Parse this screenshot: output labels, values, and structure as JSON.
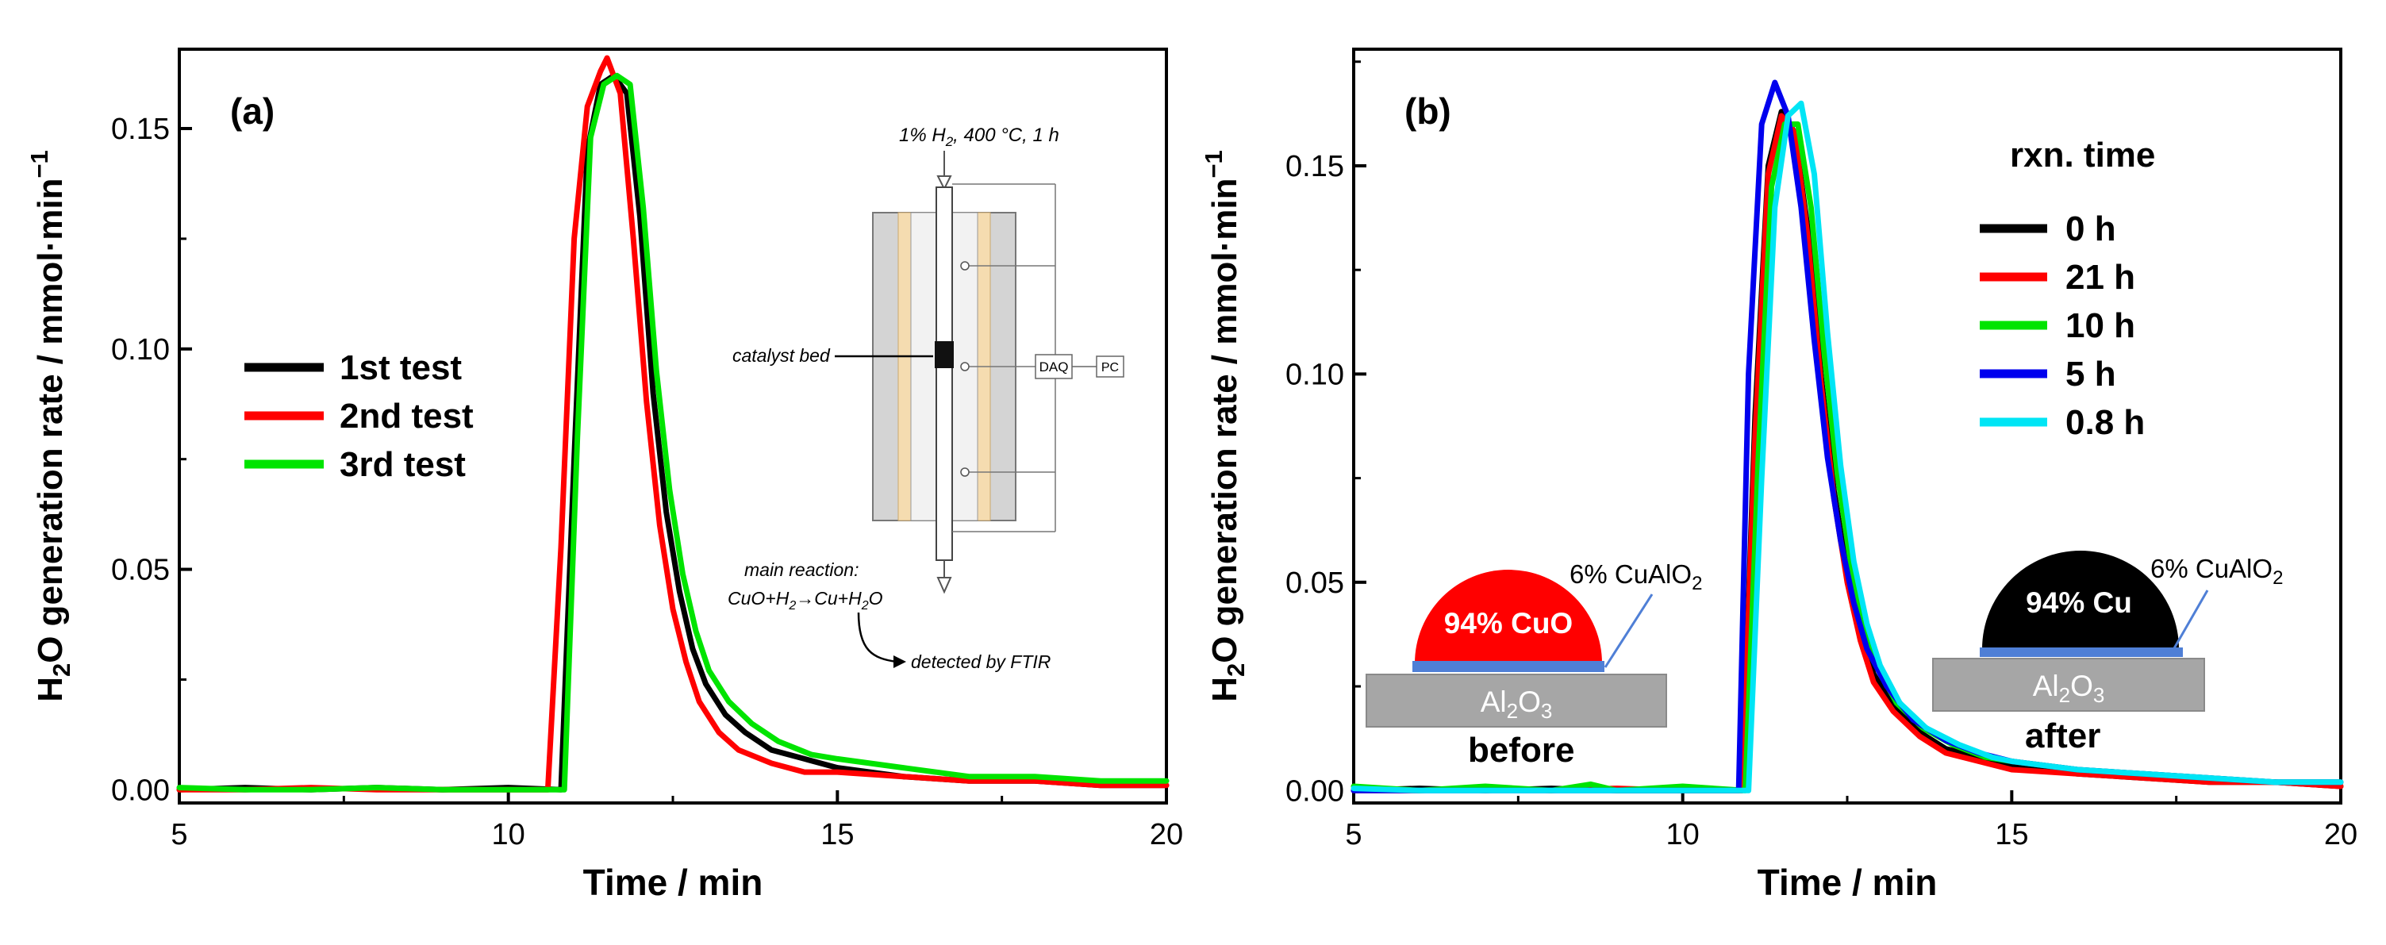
{
  "chart_data": [
    {
      "type": "line",
      "panel_label": "(a)",
      "xlabel": "Time / min",
      "ylabel": "H2O generation rate / mmol·min−1",
      "xlim": [
        5,
        20
      ],
      "ylim": [
        -0.003,
        0.168
      ],
      "xticks": [
        5,
        10,
        15,
        20
      ],
      "xtick_labels": [
        "5",
        "10",
        "15",
        "20"
      ],
      "yticks": [
        0.0,
        0.05,
        0.1,
        0.15
      ],
      "ytick_labels": [
        "0.00",
        "0.05",
        "0.10",
        "0.15"
      ],
      "legend": {
        "placement": "middle-left",
        "entries": [
          "1st test",
          "2nd test",
          "3rd test"
        ]
      },
      "series": [
        {
          "name": "1st test",
          "color": "#000000",
          "points": [
            [
              5,
              0
            ],
            [
              6,
              0.0005
            ],
            [
              7,
              0
            ],
            [
              8,
              0.0005
            ],
            [
              9,
              0
            ],
            [
              10,
              0.0005
            ],
            [
              10.8,
              0
            ],
            [
              11.0,
              0.075
            ],
            [
              11.2,
              0.145
            ],
            [
              11.4,
              0.16
            ],
            [
              11.6,
              0.162
            ],
            [
              11.8,
              0.158
            ],
            [
              12.0,
              0.13
            ],
            [
              12.2,
              0.09
            ],
            [
              12.4,
              0.063
            ],
            [
              12.6,
              0.045
            ],
            [
              12.8,
              0.032
            ],
            [
              13.0,
              0.024
            ],
            [
              13.3,
              0.017
            ],
            [
              13.6,
              0.013
            ],
            [
              14.0,
              0.009
            ],
            [
              14.5,
              0.007
            ],
            [
              15,
              0.005
            ],
            [
              16,
              0.003
            ],
            [
              17,
              0.002
            ],
            [
              18,
              0.002
            ],
            [
              19,
              0.001
            ],
            [
              20,
              0.001
            ]
          ]
        },
        {
          "name": "2nd test",
          "color": "#ff0000",
          "points": [
            [
              5,
              0
            ],
            [
              6,
              0
            ],
            [
              7,
              0.0005
            ],
            [
              8,
              0
            ],
            [
              9,
              0
            ],
            [
              10,
              0
            ],
            [
              10.6,
              0
            ],
            [
              10.8,
              0.055
            ],
            [
              11.0,
              0.125
            ],
            [
              11.2,
              0.155
            ],
            [
              11.4,
              0.163
            ],
            [
              11.5,
              0.166
            ],
            [
              11.7,
              0.158
            ],
            [
              11.9,
              0.125
            ],
            [
              12.1,
              0.088
            ],
            [
              12.3,
              0.06
            ],
            [
              12.5,
              0.041
            ],
            [
              12.7,
              0.029
            ],
            [
              12.9,
              0.02
            ],
            [
              13.2,
              0.013
            ],
            [
              13.5,
              0.009
            ],
            [
              14.0,
              0.006
            ],
            [
              14.5,
              0.004
            ],
            [
              15,
              0.004
            ],
            [
              16,
              0.003
            ],
            [
              17,
              0.002
            ],
            [
              18,
              0.002
            ],
            [
              19,
              0.001
            ],
            [
              20,
              0.001
            ]
          ]
        },
        {
          "name": "3rd test",
          "color": "#00e400",
          "points": [
            [
              5,
              0.0005
            ],
            [
              6,
              0
            ],
            [
              7,
              0
            ],
            [
              8,
              0.0005
            ],
            [
              9,
              0
            ],
            [
              10,
              0
            ],
            [
              10.85,
              0
            ],
            [
              11.05,
              0.08
            ],
            [
              11.25,
              0.148
            ],
            [
              11.45,
              0.16
            ],
            [
              11.65,
              0.162
            ],
            [
              11.85,
              0.16
            ],
            [
              12.05,
              0.132
            ],
            [
              12.25,
              0.095
            ],
            [
              12.45,
              0.068
            ],
            [
              12.65,
              0.049
            ],
            [
              12.85,
              0.036
            ],
            [
              13.05,
              0.027
            ],
            [
              13.35,
              0.02
            ],
            [
              13.7,
              0.015
            ],
            [
              14.1,
              0.011
            ],
            [
              14.6,
              0.008
            ],
            [
              15,
              0.007
            ],
            [
              16,
              0.005
            ],
            [
              17,
              0.003
            ],
            [
              18,
              0.003
            ],
            [
              19,
              0.002
            ],
            [
              20,
              0.002
            ]
          ]
        }
      ],
      "inset": {
        "condition": "1% H2, 400 °C, 1 h",
        "catalyst_label": "catalyst bed",
        "daq_label": "DAQ",
        "pc_label": "PC",
        "reaction_title": "main reaction:",
        "reaction_equation": "CuO+H2→Cu+H2O",
        "detection": "detected by FTIR"
      }
    },
    {
      "type": "line",
      "panel_label": "(b)",
      "xlabel": "Time / min",
      "ylabel": "H2O generation rate / mmol·min−1",
      "xlim": [
        5,
        20
      ],
      "ylim": [
        -0.003,
        0.178
      ],
      "xticks": [
        5,
        10,
        15,
        20
      ],
      "xtick_labels": [
        "5",
        "10",
        "15",
        "20"
      ],
      "yticks": [
        0.0,
        0.05,
        0.1,
        0.15
      ],
      "ytick_labels": [
        "0.00",
        "0.05",
        "0.10",
        "0.15"
      ],
      "legend": {
        "placement": "top-right",
        "title": "rxn. time",
        "entries": [
          "0 h",
          "21 h",
          "10 h",
          "5 h",
          "0.8 h"
        ]
      },
      "series": [
        {
          "name": "0 h",
          "color": "#000000",
          "points": [
            [
              5,
              0
            ],
            [
              6,
              0.0005
            ],
            [
              7,
              0
            ],
            [
              8,
              0.0005
            ],
            [
              9,
              0
            ],
            [
              10,
              0
            ],
            [
              10.9,
              0
            ],
            [
              11.1,
              0.09
            ],
            [
              11.3,
              0.15
            ],
            [
              11.5,
              0.163
            ],
            [
              11.7,
              0.158
            ],
            [
              11.9,
              0.135
            ],
            [
              12.1,
              0.1
            ],
            [
              12.3,
              0.072
            ],
            [
              12.5,
              0.052
            ],
            [
              12.7,
              0.038
            ],
            [
              12.9,
              0.028
            ],
            [
              13.2,
              0.02
            ],
            [
              13.6,
              0.014
            ],
            [
              14.0,
              0.01
            ],
            [
              14.5,
              0.008
            ],
            [
              15,
              0.006
            ],
            [
              16,
              0.004
            ],
            [
              17,
              0.003
            ],
            [
              18,
              0.002
            ],
            [
              19,
              0.002
            ],
            [
              20,
              0.001
            ]
          ]
        },
        {
          "name": "21 h",
          "color": "#ff0000",
          "points": [
            [
              5,
              0
            ],
            [
              6,
              0
            ],
            [
              7,
              0.0005
            ],
            [
              8,
              0
            ],
            [
              9,
              0.0005
            ],
            [
              10,
              0
            ],
            [
              10.9,
              0
            ],
            [
              11.1,
              0.085
            ],
            [
              11.3,
              0.148
            ],
            [
              11.5,
              0.162
            ],
            [
              11.7,
              0.158
            ],
            [
              11.9,
              0.133
            ],
            [
              12.1,
              0.098
            ],
            [
              12.3,
              0.07
            ],
            [
              12.5,
              0.05
            ],
            [
              12.7,
              0.036
            ],
            [
              12.9,
              0.026
            ],
            [
              13.2,
              0.019
            ],
            [
              13.6,
              0.013
            ],
            [
              14.0,
              0.009
            ],
            [
              14.5,
              0.007
            ],
            [
              15,
              0.005
            ],
            [
              16,
              0.004
            ],
            [
              17,
              0.003
            ],
            [
              18,
              0.002
            ],
            [
              19,
              0.002
            ],
            [
              20,
              0.001
            ]
          ]
        },
        {
          "name": "10 h",
          "color": "#00e400",
          "points": [
            [
              5,
              0.001
            ],
            [
              6,
              0
            ],
            [
              7,
              0.001
            ],
            [
              8,
              0
            ],
            [
              8.6,
              0.0015
            ],
            [
              9,
              0
            ],
            [
              10,
              0.001
            ],
            [
              10.95,
              0
            ],
            [
              11.15,
              0.08
            ],
            [
              11.35,
              0.145
            ],
            [
              11.55,
              0.16
            ],
            [
              11.75,
              0.16
            ],
            [
              11.95,
              0.14
            ],
            [
              12.15,
              0.105
            ],
            [
              12.35,
              0.076
            ],
            [
              12.55,
              0.055
            ],
            [
              12.75,
              0.04
            ],
            [
              12.95,
              0.03
            ],
            [
              13.25,
              0.021
            ],
            [
              13.65,
              0.015
            ],
            [
              14.1,
              0.011
            ],
            [
              14.6,
              0.008
            ],
            [
              15,
              0.007
            ],
            [
              16,
              0.005
            ],
            [
              17,
              0.004
            ],
            [
              18,
              0.003
            ],
            [
              19,
              0.002
            ],
            [
              20,
              0.002
            ]
          ]
        },
        {
          "name": "5 h",
          "color": "#0000ee",
          "points": [
            [
              5,
              0
            ],
            [
              6,
              0
            ],
            [
              7,
              0
            ],
            [
              8,
              0
            ],
            [
              9,
              0
            ],
            [
              10,
              0
            ],
            [
              10.85,
              0
            ],
            [
              11.0,
              0.1
            ],
            [
              11.2,
              0.16
            ],
            [
              11.4,
              0.17
            ],
            [
              11.6,
              0.162
            ],
            [
              11.8,
              0.14
            ],
            [
              12.0,
              0.108
            ],
            [
              12.2,
              0.08
            ],
            [
              12.4,
              0.06
            ],
            [
              12.6,
              0.045
            ],
            [
              12.8,
              0.034
            ],
            [
              13.1,
              0.025
            ],
            [
              13.5,
              0.017
            ],
            [
              14.0,
              0.012
            ],
            [
              14.5,
              0.009
            ],
            [
              15,
              0.007
            ],
            [
              16,
              0.005
            ],
            [
              17,
              0.004
            ],
            [
              18,
              0.003
            ],
            [
              19,
              0.002
            ],
            [
              20,
              0.002
            ]
          ]
        },
        {
          "name": "0.8 h",
          "color": "#00e5f5",
          "points": [
            [
              5,
              0.0005
            ],
            [
              6,
              0
            ],
            [
              7,
              0
            ],
            [
              8,
              0
            ],
            [
              9,
              0
            ],
            [
              10,
              0
            ],
            [
              11.0,
              0
            ],
            [
              11.2,
              0.075
            ],
            [
              11.4,
              0.14
            ],
            [
              11.6,
              0.162
            ],
            [
              11.8,
              0.165
            ],
            [
              12.0,
              0.148
            ],
            [
              12.2,
              0.11
            ],
            [
              12.4,
              0.078
            ],
            [
              12.6,
              0.055
            ],
            [
              12.8,
              0.04
            ],
            [
              13.0,
              0.03
            ],
            [
              13.3,
              0.021
            ],
            [
              13.7,
              0.015
            ],
            [
              14.2,
              0.011
            ],
            [
              14.7,
              0.008
            ],
            [
              15,
              0.007
            ],
            [
              16,
              0.005
            ],
            [
              17,
              0.004
            ],
            [
              18,
              0.003
            ],
            [
              19,
              0.002
            ],
            [
              20,
              0.002
            ]
          ]
        }
      ],
      "illustration": {
        "before": {
          "particle": "94% CuO",
          "interface": "6% CuAlO2",
          "support": "Al2O3",
          "caption": "before"
        },
        "after": {
          "particle": "94% Cu",
          "interface": "6% CuAlO2",
          "support": "Al2O3",
          "caption": "after"
        }
      }
    }
  ]
}
